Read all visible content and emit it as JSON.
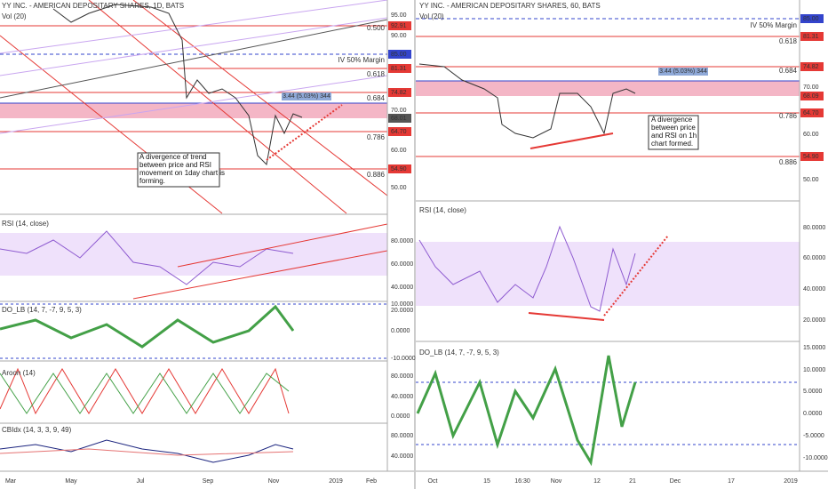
{
  "left": {
    "title": "YY INC. - AMERICAN DEPOSITARY SHARES, 1D, BATS",
    "volume_label": "Vol (20)",
    "price_axis": [
      "95.00",
      "92.91",
      "90.00",
      "85.00",
      "81.31",
      "74.82",
      "70.00",
      "68.01",
      "64.70",
      "60.00",
      "54.90",
      "50.00"
    ],
    "fib_labels": [
      "0.500",
      "IV 50% Margin",
      "0.618",
      "0.684",
      "0.786",
      "0.886"
    ],
    "measure": "3.44 (5.03%) 344",
    "annotation": [
      "A divergence of trend",
      "between price and RSI",
      "movement on 1day chart  is",
      "forming."
    ],
    "panels": [
      {
        "name": "RSI (14, close)",
        "axis": [
          "80.0000",
          "60.0000",
          "40.0000",
          "20.0000"
        ]
      },
      {
        "name": "DO_LB (14, 7, -7, 9, 5, 3)",
        "axis": [
          "10.0000",
          "0.0000",
          "-10.0000"
        ]
      },
      {
        "name": "Aroon (14)",
        "axis": [
          "80.0000",
          "40.0000",
          "0.0000"
        ]
      },
      {
        "name": "CBIdx (14, 3, 3, 9, 49)",
        "axis": [
          "80.0000",
          "40.0000"
        ]
      }
    ],
    "time_axis": [
      "Mar",
      "May",
      "Jul",
      "Sep",
      "Nov",
      "2019",
      "Feb"
    ]
  },
  "right": {
    "title": "YY INC. - AMERICAN DEPOSITARY SHARES, 60, BATS",
    "volume_label": "Vol (20)",
    "price_axis": [
      "85.00",
      "81.31",
      "74.82",
      "70.00",
      "68.09",
      "64.70",
      "60.00",
      "54.90",
      "50.00"
    ],
    "fib_labels": [
      "IV 50% Margin",
      "0.618",
      "0.684",
      "0.786",
      "0.886"
    ],
    "measure": "3.44 (5.03%) 344",
    "annotation": [
      "A divergence",
      "between price",
      "and RSI  on 1h",
      "chart formed."
    ],
    "panels": [
      {
        "name": "RSI (14, close)",
        "axis": [
          "80.0000",
          "60.0000",
          "40.0000",
          "20.0000"
        ]
      },
      {
        "name": "DO_LB (14, 7, -7, 9, 5, 3)",
        "axis": [
          "15.0000",
          "10.0000",
          "5.0000",
          "0.0000",
          "-5.0000",
          "-10.0000"
        ]
      }
    ],
    "time_axis": [
      "Oct",
      "15",
      "16:30",
      "Nov",
      "12",
      "21",
      "Dec",
      "17",
      "2019"
    ]
  }
}
